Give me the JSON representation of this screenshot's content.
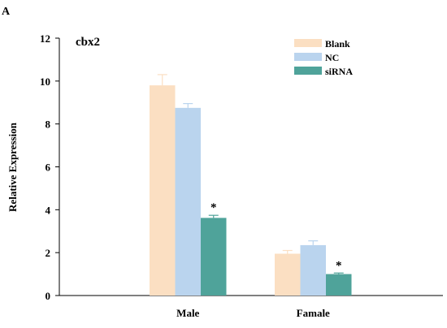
{
  "panel_label": "A",
  "chart_data": {
    "type": "bar",
    "title": "cbx2",
    "ylabel": "Relative Expression",
    "xlabel": "",
    "ylim": [
      0,
      12
    ],
    "yticks": [
      0,
      2,
      4,
      6,
      8,
      10,
      12
    ],
    "categories": [
      "Male",
      "Famale"
    ],
    "series": [
      {
        "name": "Blank",
        "color": "#fbdfc2",
        "values": [
          9.8,
          1.95
        ],
        "errors": [
          0.5,
          0.15
        ]
      },
      {
        "name": "NC",
        "color": "#bad4ee",
        "values": [
          8.75,
          2.35
        ],
        "errors": [
          0.2,
          0.2
        ]
      },
      {
        "name": "siRNA",
        "color": "#4fa39a",
        "values": [
          3.62,
          1.0
        ],
        "errors": [
          0.12,
          0.05
        ]
      }
    ],
    "annotations": [
      {
        "category": "Male",
        "series": "siRNA",
        "text": "*"
      },
      {
        "category": "Famale",
        "series": "siRNA",
        "text": "*"
      }
    ],
    "legend_position": "top-right",
    "grid": false
  }
}
